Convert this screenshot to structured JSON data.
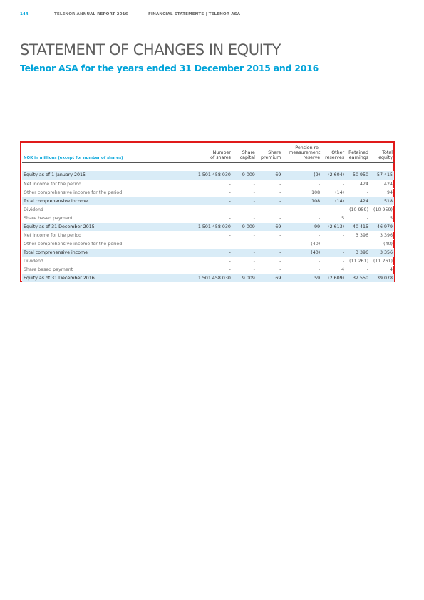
{
  "header": {
    "page_number": "144",
    "report_name": "TELENOR ANNUAL REPORT 2016",
    "section": "FINANCIAL STATEMENTS | TELENOR ASA"
  },
  "title": "STATEMENT OF CHANGES IN EQUITY",
  "subtitle": "Telenor ASA for the years ended 31 December 2015 and 2016",
  "table": {
    "unit_label": "NOK in millions (except for number of shares)",
    "columns": [
      [
        "Number",
        "of shares"
      ],
      [
        "Share",
        "capital"
      ],
      [
        "Share",
        "premium"
      ],
      [
        "Pension re-",
        "measurement",
        "reserve"
      ],
      [
        "Other",
        "reserves"
      ],
      [
        "Retained",
        "earnings"
      ],
      [
        "Total",
        "equity"
      ]
    ],
    "rows": [
      {
        "label": "Equity as of 1 January 2015",
        "style": "hl",
        "values": [
          "1 501 458 030",
          "9 009",
          "69",
          "(9)",
          "(2 604)",
          "50 950",
          "57 415"
        ]
      },
      {
        "label": "Net income for the period",
        "style": "plain",
        "values": [
          "-",
          "-",
          "-",
          "-",
          "-",
          "424",
          "424"
        ]
      },
      {
        "label": "Other comprehensive income for the period",
        "style": "plain",
        "values": [
          "-",
          "-",
          "-",
          "108",
          "(14)",
          "-",
          "94"
        ]
      },
      {
        "label": "Total comprehensive income",
        "style": "hl",
        "values": [
          "-",
          "-",
          "-",
          "108",
          "(14)",
          "424",
          "518"
        ]
      },
      {
        "label": "Dividend",
        "style": "plain",
        "values": [
          "-",
          "-",
          "-",
          "-",
          "-",
          "(10 959)",
          "(10 959)"
        ]
      },
      {
        "label": "Share based payment",
        "style": "plain",
        "values": [
          "-",
          "-",
          "-",
          "-",
          "5",
          "-",
          "5"
        ]
      },
      {
        "label": "Equity as of 31 December 2015",
        "style": "hl",
        "values": [
          "1 501 458 030",
          "9 009",
          "69",
          "99",
          "(2 613)",
          "40 415",
          "46 979"
        ]
      },
      {
        "label": "Net income for the period",
        "style": "plain",
        "values": [
          "-",
          "-",
          "-",
          "-",
          "-",
          "3 396",
          "3 396"
        ]
      },
      {
        "label": "Other comprehensive income for the period",
        "style": "plain",
        "values": [
          "-",
          "-",
          "-",
          "(40)",
          "-",
          "-",
          "(40)"
        ]
      },
      {
        "label": "Total comprehensive income",
        "style": "hl",
        "values": [
          "-",
          "-",
          "-",
          "(40)",
          "-",
          "3 396",
          "3 356"
        ]
      },
      {
        "label": "Dividend",
        "style": "plain",
        "values": [
          "-",
          "-",
          "-",
          "-",
          "-",
          "(11 261)",
          "(11 261)"
        ]
      },
      {
        "label": "Share based payment",
        "style": "plain",
        "values": [
          "-",
          "-",
          "-",
          "-",
          "4",
          "-",
          "4"
        ]
      },
      {
        "label": "Equity as of 31 December 2016",
        "style": "hl",
        "values": [
          "1 501 458 030",
          "9 009",
          "69",
          "59",
          "(2 609)",
          "32 550",
          "39 078"
        ]
      }
    ]
  },
  "colors": {
    "accent": "#00a3d9",
    "highlight_row": "#d9ecf7",
    "frame": "#e01a1a"
  }
}
